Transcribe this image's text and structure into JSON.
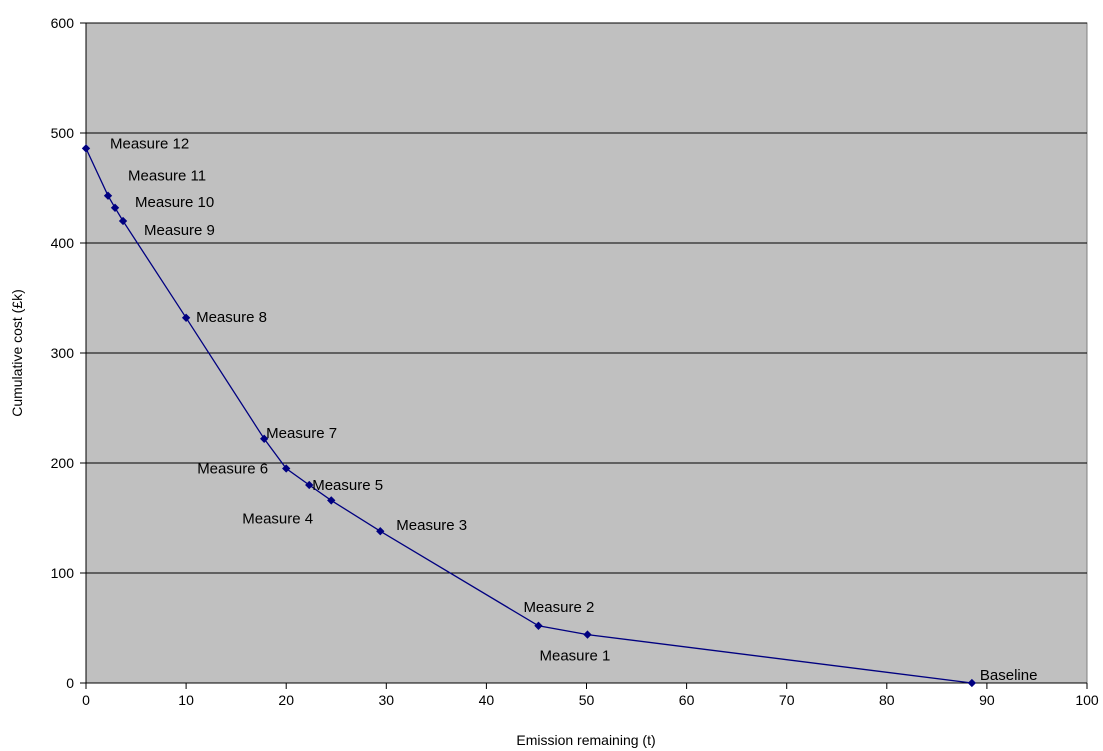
{
  "chart_data": {
    "type": "scatter",
    "title": "",
    "xlabel": "Emission remaining (t)",
    "ylabel": "Cumulative cost (£k)",
    "xlim": [
      0,
      100
    ],
    "ylim": [
      0,
      600
    ],
    "xticks": [
      0,
      10,
      20,
      30,
      40,
      50,
      60,
      70,
      80,
      90,
      100
    ],
    "yticks": [
      0,
      100,
      200,
      300,
      400,
      500,
      600
    ],
    "grid": "horizontal",
    "plot_background": "#C0C0C0",
    "series": [
      {
        "color": "#000080",
        "marker": "diamond",
        "points": [
          {
            "label": "Baseline",
            "x": 88.5,
            "y": 0
          },
          {
            "label": "Measure 1",
            "x": 50.1,
            "y": 44
          },
          {
            "label": "Measure 2",
            "x": 45.2,
            "y": 52
          },
          {
            "label": "Measure 3",
            "x": 29.4,
            "y": 138
          },
          {
            "label": "Measure 4",
            "x": 24.5,
            "y": 166
          },
          {
            "label": "Measure 5",
            "x": 22.3,
            "y": 180
          },
          {
            "label": "Measure 6",
            "x": 20.0,
            "y": 195
          },
          {
            "label": "Measure 7",
            "x": 17.8,
            "y": 222
          },
          {
            "label": "Measure 8",
            "x": 10.0,
            "y": 332
          },
          {
            "label": "Measure 9",
            "x": 3.7,
            "y": 420
          },
          {
            "label": "Measure 10",
            "x": 2.9,
            "y": 432
          },
          {
            "label": "Measure 11",
            "x": 2.2,
            "y": 443
          },
          {
            "label": "Measure 12",
            "x": 0.0,
            "y": 486
          }
        ]
      }
    ]
  }
}
